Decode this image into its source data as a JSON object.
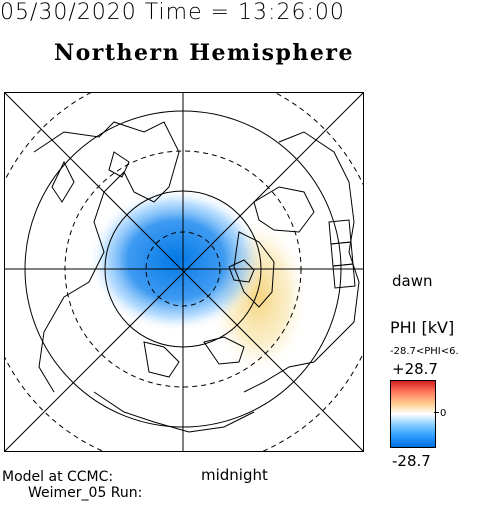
{
  "header": {
    "datetime": "05/30/2020 Time = 13:26:00",
    "hemisphere": "Northern Hemisphere"
  },
  "map": {
    "orientation_labels": {
      "dawn": "dawn",
      "midnight": "midnight"
    },
    "colors": {
      "negative": "#0078e6",
      "positive": "#f5dc82",
      "frame": "#000000"
    }
  },
  "colorbar": {
    "title": "PHI [kV]",
    "range_text": "-28.7<PHI<6.",
    "max_label": "+28.7",
    "zero_label": "0",
    "min_label": "-28.7",
    "colors": {
      "top": "#d42020",
      "mid": "#ffffff",
      "bottom": "#0070e0"
    }
  },
  "footer": {
    "line1": "Model at CCMC:",
    "line2": "Weimer_05 Run:"
  }
}
